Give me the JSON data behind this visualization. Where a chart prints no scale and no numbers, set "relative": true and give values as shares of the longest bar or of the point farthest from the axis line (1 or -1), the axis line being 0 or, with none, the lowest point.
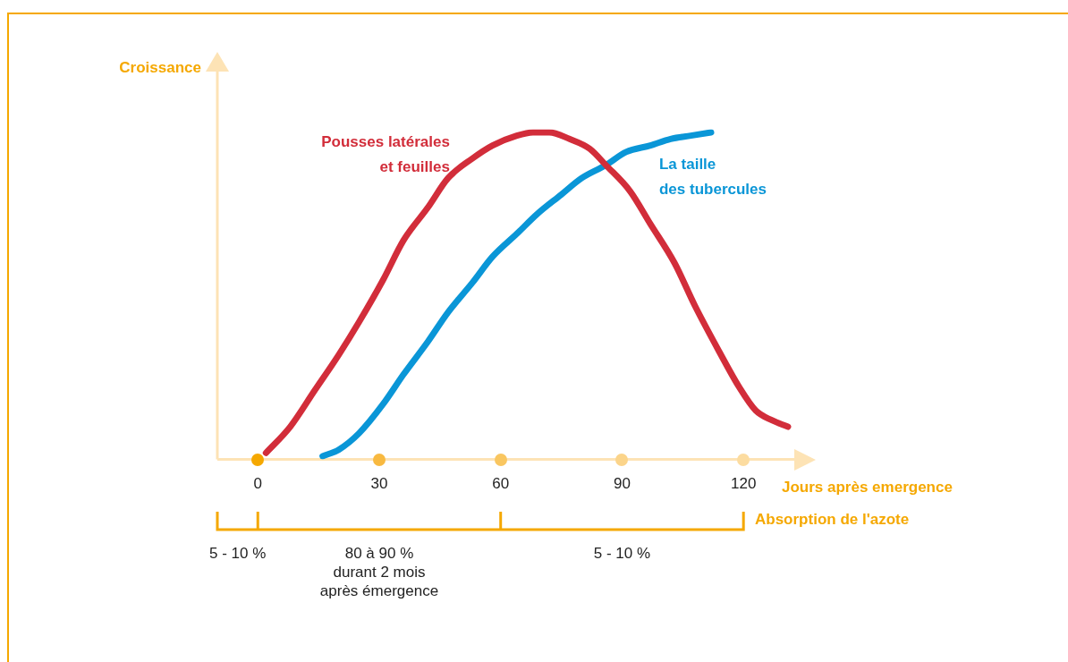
{
  "chart_data": {
    "type": "line",
    "relative": true,
    "ylabel": "Croissance",
    "xlabel": "Jours après emergence",
    "xlim": [
      -10,
      133
    ],
    "xticks": [
      0,
      30,
      60,
      90,
      120
    ],
    "grid": false,
    "legend": false,
    "marker": "none",
    "line_style": "solid",
    "series": [
      {
        "name": "Pousses latérales\net feuilles",
        "color": "#d22d3a",
        "x": [
          2,
          8,
          14,
          20,
          25,
          31,
          36,
          42,
          47,
          53,
          58,
          64,
          68,
          72,
          77,
          82,
          86,
          92,
          97,
          103,
          108,
          114,
          119,
          123,
          127,
          131
        ],
        "values": [
          0.02,
          0.1,
          0.21,
          0.32,
          0.42,
          0.55,
          0.67,
          0.77,
          0.86,
          0.92,
          0.96,
          0.99,
          1,
          1,
          0.98,
          0.95,
          0.9,
          0.82,
          0.72,
          0.6,
          0.47,
          0.33,
          0.22,
          0.15,
          0.12,
          0.1
        ]
      },
      {
        "name": "La taille\ndes tubercules",
        "color": "#0a96d7",
        "x": [
          16,
          20,
          25,
          31,
          36,
          42,
          47,
          53,
          58,
          64,
          69,
          75,
          80,
          86,
          91,
          97,
          102,
          107,
          112
        ],
        "values": [
          0.01,
          0.03,
          0.08,
          0.17,
          0.26,
          0.36,
          0.45,
          0.54,
          0.62,
          0.69,
          0.75,
          0.81,
          0.86,
          0.9,
          0.94,
          0.96,
          0.98,
          0.99,
          1
        ]
      }
    ],
    "annotations": [
      "Absorption de l'azote",
      "5 - 10 %",
      "80 à 90 %\ndurant 2 mois\naprès émergence",
      "5 - 10 %"
    ]
  }
}
